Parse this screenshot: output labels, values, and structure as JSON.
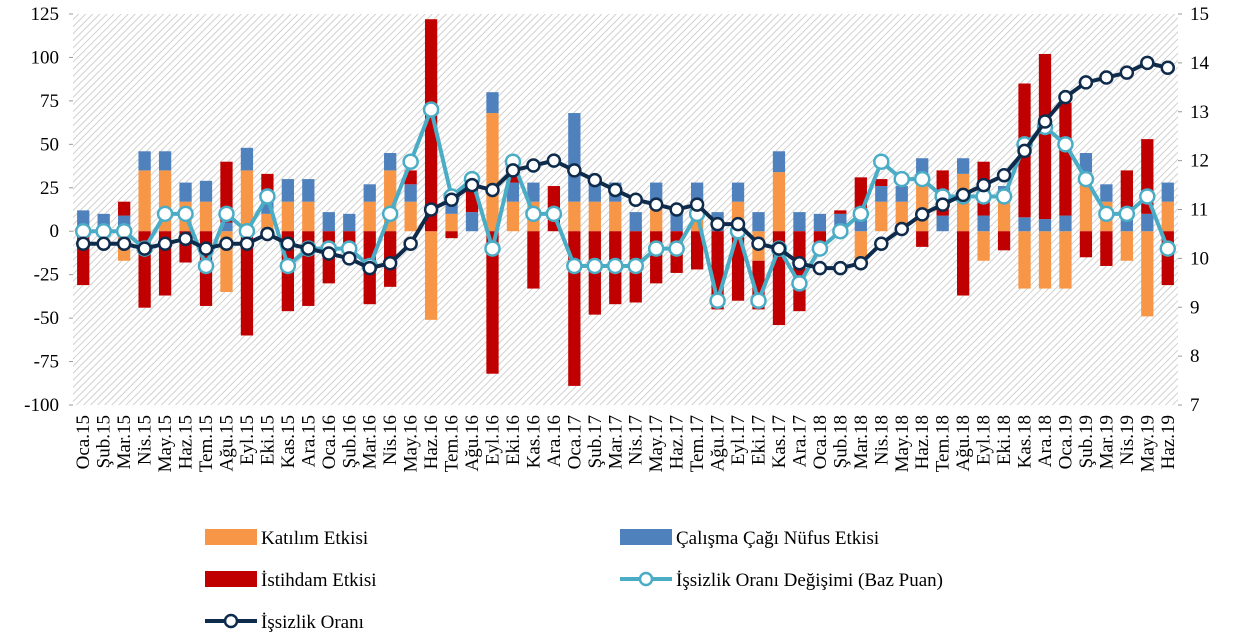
{
  "chart_data": {
    "type": "bar",
    "stacked": true,
    "categories": [
      "Oca.15",
      "Şub.15",
      "Mar.15",
      "Nis.15",
      "May.15",
      "Haz.15",
      "Tem.15",
      "Ağu.15",
      "Eyl.15",
      "Eki.15",
      "Kas.15",
      "Ara.15",
      "Oca.16",
      "Şub.16",
      "Mar.16",
      "Nis.16",
      "May.16",
      "Haz.16",
      "Tem.16",
      "Ağu.16",
      "Eyl.16",
      "Eki.16",
      "Kas.16",
      "Ara.16",
      "Oca.17",
      "Şub.17",
      "Mar.17",
      "Nis.17",
      "May.17",
      "Haz.17",
      "Tem.17",
      "Ağu.17",
      "Eyl.17",
      "Eki.17",
      "Kas.17",
      "Ara.17",
      "Oca.18",
      "Şub.18",
      "Mar.18",
      "Nis.18",
      "May.18",
      "Haz.18",
      "Tem.18",
      "Ağu.18",
      "Eyl.18",
      "Eki.18",
      "Kas.18",
      "Ara.18",
      "Oca.19",
      "Şub.19",
      "Mar.19",
      "Nis.19",
      "May.19",
      "Haz.19"
    ],
    "series": [
      {
        "name": "Katılım Etkisi",
        "type": "bar",
        "color": "#f79646",
        "values": [
          1,
          0,
          -17,
          35,
          35,
          17,
          17,
          -35,
          35,
          10,
          17,
          17,
          0,
          0,
          17,
          35,
          17,
          -51,
          10,
          0,
          68,
          17,
          17,
          0,
          17,
          17,
          17,
          0,
          17,
          0,
          17,
          0,
          17,
          -17,
          34,
          0,
          0,
          0,
          -17,
          17,
          17,
          33,
          0,
          33,
          -17,
          17,
          -33,
          -33,
          -33,
          34,
          17,
          -17,
          -49,
          17
        ]
      },
      {
        "name": "Çalışma Çağı Nüfus Etkisi",
        "type": "bar",
        "color": "#4f81bd",
        "values": [
          11,
          10,
          9,
          11,
          11,
          11,
          12,
          5,
          13,
          12,
          13,
          13,
          11,
          10,
          10,
          10,
          10,
          0,
          10,
          11,
          12,
          11,
          11,
          0,
          51,
          11,
          11,
          11,
          11,
          11,
          11,
          11,
          11,
          11,
          12,
          11,
          10,
          10,
          10,
          9,
          9,
          9,
          9,
          9,
          9,
          9,
          8,
          7,
          9,
          11,
          10,
          10,
          10,
          11
        ]
      },
      {
        "name": "İstihdam Etkisi",
        "type": "bar",
        "color": "#c00000",
        "values": [
          -31,
          -2,
          8,
          -44,
          -37,
          -18,
          -43,
          35,
          -60,
          11,
          -46,
          -43,
          -30,
          -10,
          -42,
          -32,
          8,
          122,
          -4,
          15,
          -82,
          10,
          -33,
          26,
          -89,
          -48,
          -42,
          -41,
          -30,
          -24,
          -22,
          -45,
          -40,
          -28,
          -54,
          -46,
          -10,
          2,
          21,
          4,
          0,
          -9,
          26,
          -37,
          31,
          -11,
          77,
          95,
          65,
          -15,
          -20,
          25,
          43,
          -31
        ]
      },
      {
        "name": "İşsizlik Oranı Değişimi (Baz Puan)",
        "type": "line",
        "color": "#4bacc6",
        "values": [
          0,
          0,
          0,
          -10,
          10,
          10,
          -20,
          10,
          0,
          20,
          -20,
          -10,
          -10,
          -10,
          -20,
          10,
          40,
          70,
          20,
          30,
          -10,
          40,
          10,
          10,
          -20,
          -20,
          -20,
          -20,
          -10,
          -10,
          10,
          -40,
          0,
          -40,
          -10,
          -30,
          -10,
          0,
          10,
          40,
          30,
          30,
          20,
          20,
          20,
          20,
          50,
          60,
          50,
          30,
          10,
          10,
          20,
          -10
        ]
      },
      {
        "name": "İşsizlik Oranı",
        "type": "line",
        "axis": "y2",
        "color": "#0f2b4c",
        "values": [
          10.3,
          10.3,
          10.3,
          10.2,
          10.3,
          10.4,
          10.2,
          10.3,
          10.3,
          10.5,
          10.3,
          10.2,
          10.1,
          10.0,
          9.8,
          9.9,
          10.3,
          11.0,
          11.2,
          11.5,
          11.4,
          11.8,
          11.9,
          12.0,
          11.8,
          11.6,
          11.4,
          11.2,
          11.1,
          11.0,
          11.1,
          10.7,
          10.7,
          10.3,
          10.2,
          9.9,
          9.8,
          9.8,
          9.9,
          10.3,
          10.6,
          10.9,
          11.1,
          11.3,
          11.5,
          11.7,
          12.2,
          12.8,
          13.3,
          13.6,
          13.7,
          13.8,
          14.0,
          13.9
        ]
      }
    ],
    "ylim": [
      -100,
      125
    ],
    "yticks": [
      -100,
      -75,
      -50,
      -25,
      0,
      25,
      50,
      75,
      100,
      125
    ],
    "y2lim": [
      7,
      15
    ],
    "y2ticks": [
      7,
      8,
      9,
      10,
      11,
      12,
      13,
      14,
      15
    ],
    "legend": "bottom"
  }
}
